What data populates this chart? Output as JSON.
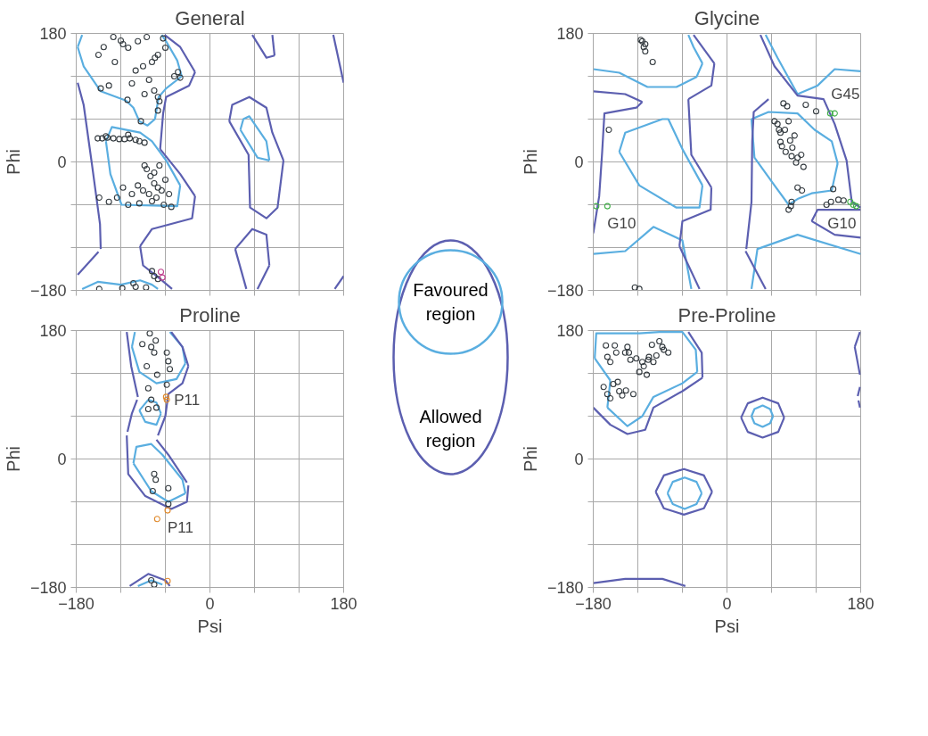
{
  "chart_data": [
    {
      "type": "scatter",
      "title": "General",
      "ylabel": "Phi",
      "xlim": [
        -180,
        180
      ],
      "ylim": [
        -180,
        180
      ],
      "xticks": [
        -180,
        {
          "value": -120,
          "label": null
        },
        {
          "value": -60,
          "label": null
        },
        0,
        {
          "value": 60,
          "label": null
        },
        {
          "value": 120,
          "label": null
        },
        180
      ],
      "yticks": [
        -180,
        {
          "value": -120,
          "label": null
        },
        {
          "value": -60,
          "label": null
        },
        0,
        {
          "value": 60,
          "label": null
        },
        {
          "value": 120,
          "label": null
        },
        180
      ],
      "grid": true,
      "tick_labels": "y",
      "legend": "right",
      "series": [
        {
          "type": "line",
          "name": "Favoured region",
          "color": "#5aaee0",
          "x": [
            -178,
            -170,
            -147,
            -113,
            -103,
            -95,
            -84,
            -74,
            -69,
            -59,
            -38
          ],
          "values": [
            161,
            134,
            99,
            86,
            76,
            57,
            51,
            60,
            91,
            103,
            120
          ]
        },
        {
          "type": "line",
          "color": "#5aaee0",
          "x": [
            -178,
            -172
          ],
          "values": [
            161,
            178
          ]
        },
        {
          "type": "line",
          "color": "#5aaee0",
          "x": [
            -65,
            -59,
            -44,
            -38
          ],
          "values": [
            178,
            169,
            142,
            120
          ]
        },
        {
          "type": "line",
          "color": "#5aaee0",
          "x": [
            -140,
            -132,
            -94,
            -78,
            -59,
            -40
          ],
          "values": [
            29,
            49,
            41,
            29,
            2,
            -33
          ]
        },
        {
          "type": "line",
          "color": "#5aaee0",
          "x": [
            -140,
            -134,
            -119,
            -44,
            -40
          ],
          "values": [
            29,
            -17,
            -60,
            -62,
            -33
          ]
        },
        {
          "type": "line",
          "color": "#5aaee0",
          "x": [
            -172,
            -151,
            -120,
            -94,
            -78,
            -70
          ],
          "values": [
            -178,
            -168,
            -172,
            -166,
            -172,
            -178
          ]
        },
        {
          "type": "line",
          "color": "#5aaee0",
          "x": [
            41,
            64,
            80
          ],
          "values": [
            45,
            6,
            2
          ]
        },
        {
          "type": "line",
          "color": "#5aaee0",
          "x": [
            41,
            45,
            53,
            76,
            80
          ],
          "values": [
            45,
            60,
            64,
            29,
            2
          ]
        },
        {
          "type": "line",
          "name": "Allowed region",
          "color": "#5c5fb0",
          "x": [
            -178,
            -170,
            -159,
            -148,
            -147
          ],
          "values": [
            111,
            80,
            -2,
            -87,
            -122
          ]
        },
        {
          "type": "line",
          "color": "#5c5fb0",
          "x": [
            -178,
            -150
          ],
          "values": [
            -158,
            -126
          ]
        },
        {
          "type": "line",
          "color": "#5c5fb0",
          "x": [
            -61,
            -40,
            -20
          ],
          "values": [
            178,
            161,
            126
          ]
        },
        {
          "type": "line",
          "color": "#5c5fb0",
          "x": [
            -67,
            -63,
            -59,
            -28,
            -20
          ],
          "values": [
            18,
            68,
            91,
            107,
            126
          ]
        },
        {
          "type": "line",
          "color": "#5c5fb0",
          "x": [
            -67,
            -40,
            -20
          ],
          "values": [
            18,
            -17,
            -48
          ]
        },
        {
          "type": "line",
          "color": "#5c5fb0",
          "x": [
            -94,
            -78,
            -24,
            -20
          ],
          "values": [
            -118,
            -94,
            -79,
            -48
          ]
        },
        {
          "type": "line",
          "color": "#5c5fb0",
          "x": [
            -94,
            -90,
            -67,
            -51
          ],
          "values": [
            -118,
            -145,
            -164,
            -178
          ]
        },
        {
          "type": "line",
          "color": "#5c5fb0",
          "x": [
            26,
            30,
            53,
            76,
            84,
            99
          ],
          "values": [
            57,
            80,
            91,
            76,
            41,
            2
          ]
        },
        {
          "type": "line",
          "color": "#5c5fb0",
          "x": [
            26,
            52,
            54,
            76,
            91,
            99
          ],
          "values": [
            57,
            10,
            -64,
            -79,
            -64,
            2
          ]
        },
        {
          "type": "line",
          "color": "#5c5fb0",
          "x": [
            34,
            49
          ],
          "values": [
            -122,
            -178
          ]
        },
        {
          "type": "line",
          "color": "#5c5fb0",
          "x": [
            34,
            57,
            76,
            80
          ],
          "values": [
            -122,
            -94,
            -102,
            -145
          ]
        },
        {
          "type": "line",
          "color": "#5c5fb0",
          "x": [
            64,
            80
          ],
          "values": [
            -178,
            -145
          ]
        },
        {
          "type": "line",
          "color": "#5c5fb0",
          "x": [
            57,
            76,
            87
          ],
          "values": [
            178,
            146,
            149
          ]
        },
        {
          "type": "line",
          "color": "#5c5fb0",
          "x": [
            84,
            87
          ],
          "values": [
            178,
            149
          ]
        },
        {
          "type": "line",
          "color": "#5c5fb0",
          "x": [
            166,
            180
          ],
          "values": [
            178,
            111
          ]
        },
        {
          "type": "line",
          "color": "#5c5fb0",
          "x": [
            168,
            180
          ],
          "values": [
            -178,
            -160
          ]
        },
        {
          "marker": "circle",
          "color": "#333a3f",
          "x": [
            -143,
            -117,
            -120,
            -110,
            -97,
            -63,
            -74,
            -70,
            -78,
            -90,
            -100,
            -82,
            -70,
            -75,
            -43,
            -48,
            -40,
            -136,
            -147,
            -111,
            -93,
            -70,
            -68,
            -128,
            -150,
            -105,
            -88,
            -60,
            -85,
            -130,
            -151,
            -145,
            -138,
            -130,
            -122,
            -115,
            -108,
            -100,
            -95,
            -88,
            -110,
            -140,
            -70,
            -75,
            -65,
            -80,
            -60,
            -72,
            -85,
            -68,
            -55,
            -78,
            -62,
            -90,
            -82,
            -117,
            -136,
            -149,
            -97,
            -105,
            -125,
            -110,
            -95,
            -52,
            -88,
            -75,
            -78,
            -70,
            -103,
            -149,
            -86,
            -75,
            -100,
            -118
          ],
          "values": [
            161,
            165,
            170,
            160,
            169,
            173,
            146,
            150,
            140,
            134,
            128,
            115,
            91,
            100,
            126,
            120,
            118,
            107,
            103,
            87,
            57,
            72,
            85,
            140,
            150,
            110,
            95,
            160,
            175,
            175,
            33,
            33,
            34,
            33,
            32,
            32,
            33,
            31,
            29,
            27,
            38,
            36,
            -36,
            -30,
            -40,
            -20,
            -25,
            -50,
            -10,
            -5,
            -45,
            -55,
            -60,
            -40,
            -45,
            -36,
            -56,
            -50,
            -33,
            -45,
            -50,
            -60,
            -58,
            -63,
            -5,
            -15,
            -153,
            -164,
            -170,
            -178,
            -176,
            -160,
            -175,
            -177
          ]
        },
        {
          "marker": "circle",
          "x": [
            -66,
            -64
          ],
          "values": [
            -154,
            -162
          ],
          "colors": [
            "#c0408f",
            "#c0408f"
          ]
        }
      ]
    },
    {
      "type": "scatter",
      "title": "Glycine",
      "ylabel": "Phi",
      "xlim": [
        -180,
        180
      ],
      "ylim": [
        -180,
        180
      ],
      "xticks": [
        -180,
        {
          "value": -120,
          "label": null
        },
        {
          "value": -60,
          "label": null
        },
        0,
        {
          "value": 60,
          "label": null
        },
        {
          "value": 120,
          "label": null
        },
        180
      ],
      "yticks": [
        -180,
        {
          "value": -120,
          "label": null
        },
        {
          "value": -60,
          "label": null
        },
        0,
        {
          "value": 60,
          "label": null
        },
        {
          "value": 120,
          "label": null
        },
        180
      ],
      "grid": true,
      "tick_labels": "y",
      "annotations": [
        {
          "text": "G45",
          "x": 145,
          "y": 68
        },
        {
          "text": "G10",
          "x": -161,
          "y": -62
        },
        {
          "text": "G10",
          "x": 174,
          "y": -62
        }
      ],
      "series": [
        {
          "type": "line",
          "color": "#5aaee0",
          "x": [
            -180,
            -145,
            -107,
            -68,
            -41,
            -33
          ],
          "values": [
            130,
            125,
            105,
            105,
            119,
            138
          ]
        },
        {
          "type": "line",
          "color": "#5aaee0",
          "x": [
            -52,
            -45,
            -33
          ],
          "values": [
            178,
            161,
            138
          ]
        },
        {
          "type": "line",
          "color": "#5aaee0",
          "x": [
            -145,
            -137,
            -87,
            -79,
            -60,
            -33
          ],
          "values": [
            14,
            41,
            60,
            60,
            18,
            -33
          ]
        },
        {
          "type": "line",
          "color": "#5aaee0",
          "x": [
            -145,
            -118,
            -68,
            -37,
            -33
          ],
          "values": [
            14,
            -33,
            -64,
            -64,
            -33
          ]
        },
        {
          "type": "line",
          "color": "#5aaee0",
          "x": [
            -180,
            -137,
            -99,
            -60,
            -48
          ],
          "values": [
            -129,
            -125,
            -91,
            -110,
            -178
          ]
        },
        {
          "type": "line",
          "color": "#5aaee0",
          "x": [
            52,
            68,
            95,
            122,
            145,
            180
          ],
          "values": [
            178,
            146,
            95,
            107,
            130,
            127
          ]
        },
        {
          "type": "line",
          "color": "#5aaee0",
          "x": [
            33,
            56,
            95,
            118,
            141,
            149
          ],
          "values": [
            60,
            70,
            68,
            45,
            29,
            -2
          ]
        },
        {
          "type": "line",
          "color": "#5aaee0",
          "x": [
            33,
            37,
            64,
            83,
            95,
            114,
            141,
            149
          ],
          "values": [
            60,
            6,
            -33,
            -60,
            -52,
            -44,
            -40,
            -2
          ]
        },
        {
          "type": "line",
          "color": "#5aaee0",
          "x": [
            33,
            41,
            95,
            180
          ],
          "values": [
            -178,
            -122,
            -102,
            -129
          ]
        },
        {
          "type": "line",
          "color": "#5c5fb0",
          "x": [
            -180,
            -137,
            -114
          ],
          "values": [
            99,
            95,
            84
          ]
        },
        {
          "type": "line",
          "color": "#5c5fb0",
          "x": [
            -180,
            -172,
            -168,
            -165,
            -122,
            -114
          ],
          "values": [
            -100,
            -48,
            14,
            68,
            76,
            84
          ]
        },
        {
          "type": "line",
          "color": "#5c5fb0",
          "x": [
            -45,
            -17
          ],
          "values": [
            178,
            138
          ]
        },
        {
          "type": "line",
          "color": "#5c5fb0",
          "x": [
            -52,
            -21,
            -17
          ],
          "values": [
            88,
            107,
            138
          ]
        },
        {
          "type": "line",
          "color": "#5c5fb0",
          "x": [
            -52,
            -48,
            -21
          ],
          "values": [
            88,
            10,
            -36
          ]
        },
        {
          "type": "line",
          "color": "#5c5fb0",
          "x": [
            -64,
            -60,
            -22,
            -21
          ],
          "values": [
            -118,
            -83,
            -67,
            -36
          ]
        },
        {
          "type": "line",
          "color": "#5c5fb0",
          "x": [
            -64,
            -37
          ],
          "values": [
            -118,
            -178
          ]
        },
        {
          "type": "line",
          "color": "#5c5fb0",
          "x": [
            45,
            64,
            95,
            130,
            145,
            161,
            168,
            180
          ],
          "values": [
            178,
            134,
            93,
            88,
            53,
            2,
            -56,
            -64
          ]
        },
        {
          "type": "line",
          "color": "#5c5fb0",
          "x": [
            25,
            52
          ],
          "values": [
            -125,
            -178
          ]
        },
        {
          "type": "line",
          "color": "#5c5fb0",
          "x": [
            26,
            33,
            34,
            36,
            56
          ],
          "values": [
            -122,
            -56,
            29,
            70,
            88
          ]
        },
        {
          "type": "line",
          "color": "#5c5fb0",
          "x": [
            114,
            122,
            180
          ],
          "values": [
            -83,
            -67,
            -67
          ]
        },
        {
          "type": "line",
          "color": "#5c5fb0",
          "x": [
            114,
            145,
            180
          ],
          "values": [
            -83,
            -102,
            -106
          ]
        },
        {
          "marker": "circle",
          "color": "#333a3f",
          "x": [
            64,
            68,
            72,
            74,
            79,
            87,
            95,
            91,
            83,
            81,
            106,
            120,
            103,
            87,
            101,
            83,
            134,
            143,
            157,
            70,
            78,
            85,
            72,
            88,
            100,
            93,
            76,
            86,
            95,
            140,
            150,
            -114,
            -112,
            -110,
            -116,
            -110,
            -100,
            -159,
            -124,
            -118
          ],
          "values": [
            57,
            53,
            41,
            22,
            14,
            8,
            6,
            37,
            57,
            78,
            80,
            71,
            -7,
            -56,
            -40,
            -67,
            -60,
            -38,
            -54,
            45,
            45,
            30,
            28,
            20,
            10,
            -1,
            82,
            -62,
            -36,
            -56,
            -53,
            169,
            161,
            165,
            171,
            155,
            140,
            45,
            -176,
            -178
          ]
        },
        {
          "marker": "circle",
          "x": [
            139,
            145,
            166,
            170,
            174,
            -176,
            -161
          ],
          "values": [
            68,
            68,
            -56,
            -60,
            -62,
            -62,
            -62
          ],
          "colors": [
            "#43b04a",
            "#43b04a",
            "#43b04a",
            "#43b04a",
            "#43b04a",
            "#43b04a",
            "#43b04a"
          ]
        }
      ]
    },
    {
      "type": "scatter",
      "title": "Proline",
      "xlabel": "Psi",
      "ylabel": "Phi",
      "xlim": [
        -180,
        180
      ],
      "ylim": [
        -180,
        180
      ],
      "xticks": [
        -180,
        {
          "value": -120,
          "label": null
        },
        {
          "value": -60,
          "label": null
        },
        0,
        {
          "value": 60,
          "label": null
        },
        {
          "value": 120,
          "label": null
        },
        180
      ],
      "yticks": [
        -180,
        {
          "value": -120,
          "label": null
        },
        {
          "value": -60,
          "label": null
        },
        0,
        {
          "value": 60,
          "label": null
        },
        {
          "value": 120,
          "label": null
        },
        180
      ],
      "grid": true,
      "annotations": [
        {
          "text": "P11",
          "x": -58,
          "y": 83
        },
        {
          "text": "P11",
          "x": -57,
          "y": -72
        }
      ],
      "series": [
        {
          "type": "line",
          "color": "#5aaee0",
          "x": [
            -105,
            -101
          ],
          "values": [
            157,
            178
          ]
        },
        {
          "type": "line",
          "color": "#5aaee0",
          "x": [
            -105,
            -95,
            -72,
            -45,
            -33
          ],
          "values": [
            157,
            122,
            106,
            112,
            134
          ]
        },
        {
          "type": "line",
          "color": "#5aaee0",
          "x": [
            -54,
            -37,
            -33
          ],
          "values": [
            178,
            157,
            134
          ]
        },
        {
          "type": "line",
          "color": "#5aaee0",
          "x": [
            -95,
            -83,
            -72,
            -66
          ],
          "values": [
            68,
            83,
            79,
            64
          ]
        },
        {
          "type": "line",
          "color": "#5aaee0",
          "x": [
            -95,
            -87,
            -72,
            -66
          ],
          "values": [
            68,
            52,
            48,
            64
          ]
        },
        {
          "type": "line",
          "color": "#5aaee0",
          "x": [
            -103,
            -99,
            -79,
            -64,
            -37,
            -33
          ],
          "values": [
            -6,
            17,
            21,
            6,
            -29,
            -48
          ]
        },
        {
          "type": "line",
          "color": "#5aaee0",
          "x": [
            -103,
            -79,
            -56,
            -33
          ],
          "values": [
            -6,
            -45,
            -60,
            -48
          ]
        },
        {
          "type": "line",
          "color": "#5aaee0",
          "x": [
            -97,
            -79,
            -64
          ],
          "values": [
            -178,
            -170,
            -176
          ]
        },
        {
          "type": "line",
          "color": "#5c5fb0",
          "x": [
            -112,
            -106,
            -97
          ],
          "values": [
            178,
            130,
            87
          ]
        },
        {
          "type": "line",
          "color": "#5c5fb0",
          "x": [
            -111,
            -105,
            -98
          ],
          "values": [
            38,
            64,
            83
          ]
        },
        {
          "type": "line",
          "color": "#5c5fb0",
          "x": [
            -112,
            -110,
            -87,
            -52,
            -31,
            -29
          ],
          "values": [
            33,
            -21,
            -52,
            -70,
            -60,
            -37
          ]
        },
        {
          "type": "line",
          "color": "#5c5fb0",
          "x": [
            -72,
            -56,
            -31
          ],
          "values": [
            27,
            6,
            -33
          ]
        },
        {
          "type": "line",
          "color": "#5c5fb0",
          "x": [
            -70,
            -60,
            -56,
            -37,
            -29
          ],
          "values": [
            33,
            60,
            91,
            106,
            130
          ]
        },
        {
          "type": "line",
          "color": "#5c5fb0",
          "x": [
            -52,
            -37,
            -29
          ],
          "values": [
            178,
            157,
            130
          ]
        },
        {
          "type": "line",
          "color": "#5c5fb0",
          "x": [
            -108,
            -83,
            -60,
            -54
          ],
          "values": [
            -178,
            -161,
            -170,
            -178
          ]
        },
        {
          "marker": "circle",
          "color": "#333a3f",
          "x": [
            -81,
            -73,
            -79,
            -75,
            -58,
            -56,
            -85,
            -71,
            -54,
            -83,
            -58,
            -79,
            -72,
            -83,
            -91,
            -75,
            -73,
            -77,
            -56,
            -56,
            -79,
            -75
          ],
          "values": [
            176,
            166,
            157,
            149,
            149,
            137,
            130,
            118,
            126,
            99,
            104,
            83,
            72,
            70,
            161,
            -21,
            -29,
            -45,
            -41,
            -63,
            -170,
            -176
          ]
        },
        {
          "marker": "circle",
          "x": [
            -59,
            -58,
            -57,
            -71,
            -57
          ],
          "values": [
            87,
            83,
            -72,
            -84,
            -171
          ],
          "colors": [
            "#e08a2c",
            "#e08a2c",
            "#e08a2c",
            "#e08a2c",
            "#e08a2c"
          ]
        }
      ]
    },
    {
      "type": "scatter",
      "title": "Pre-Proline",
      "xlabel": "Psi",
      "ylabel": "Phi",
      "xlim": [
        -180,
        180
      ],
      "ylim": [
        -180,
        180
      ],
      "xticks": [
        -180,
        {
          "value": -120,
          "label": null
        },
        {
          "value": -60,
          "label": null
        },
        0,
        {
          "value": 60,
          "label": null
        },
        {
          "value": 120,
          "label": null
        },
        180
      ],
      "yticks": [
        -180,
        {
          "value": -120,
          "label": null
        },
        {
          "value": -60,
          "label": null
        },
        0,
        {
          "value": 60,
          "label": null
        },
        {
          "value": 120,
          "label": null
        },
        180
      ],
      "grid": true,
      "series": [
        {
          "type": "line",
          "color": "#5aaee0",
          "x": [
            -178,
            -176,
            -118,
            -91,
            -60,
            -42,
            -40
          ],
          "values": [
            141,
            176,
            176,
            178,
            178,
            153,
            122
          ]
        },
        {
          "type": "line",
          "color": "#5aaee0",
          "x": [
            -178,
            -157
          ],
          "values": [
            141,
            110
          ]
        },
        {
          "type": "line",
          "color": "#5aaee0",
          "x": [
            -161,
            -157
          ],
          "values": [
            72,
            110
          ]
        },
        {
          "type": "line",
          "color": "#5aaee0",
          "x": [
            -161,
            -134,
            -114,
            -99,
            -60,
            -40
          ],
          "values": [
            72,
            46,
            60,
            87,
            106,
            122
          ]
        },
        {
          "type": "line",
          "color": "#5aaee0",
          "x": [
            33,
            37,
            48,
            58,
            62
          ],
          "values": [
            60,
            70,
            75,
            70,
            60
          ]
        },
        {
          "type": "line",
          "color": "#5aaee0",
          "x": [
            33,
            37,
            48,
            58,
            62
          ],
          "values": [
            60,
            50,
            45,
            50,
            60
          ]
        },
        {
          "type": "line",
          "color": "#5aaee0",
          "x": [
            -80,
            -73,
            -57,
            -41,
            -34
          ],
          "values": [
            -48,
            -32,
            -26,
            -32,
            -48
          ]
        },
        {
          "type": "line",
          "color": "#5aaee0",
          "x": [
            -80,
            -73,
            -57,
            -41,
            -34
          ],
          "values": [
            -48,
            -63,
            -70,
            -63,
            -48
          ]
        },
        {
          "type": "line",
          "color": "#5c5fb0",
          "x": [
            -180,
            -157,
            -134,
            -110,
            -99,
            -60,
            -33
          ],
          "values": [
            72,
            48,
            35,
            41,
            72,
            95,
            114
          ]
        },
        {
          "type": "line",
          "color": "#5c5fb0",
          "x": [
            -52,
            -34,
            -33
          ],
          "values": [
            178,
            149,
            114
          ]
        },
        {
          "type": "line",
          "color": "#5c5fb0",
          "x": [
            19,
            28,
            48,
            69,
            77
          ],
          "values": [
            58,
            78,
            86,
            78,
            58
          ]
        },
        {
          "type": "line",
          "color": "#5c5fb0",
          "x": [
            19,
            28,
            48,
            69,
            77
          ],
          "values": [
            58,
            38,
            30,
            38,
            58
          ]
        },
        {
          "type": "line",
          "color": "#5c5fb0",
          "x": [
            -96,
            -85,
            -58,
            -31,
            -20
          ],
          "values": [
            -46,
            -23,
            -14,
            -23,
            -46
          ]
        },
        {
          "type": "line",
          "color": "#5c5fb0",
          "x": [
            -96,
            -85,
            -58,
            -31,
            -20
          ],
          "values": [
            -46,
            -69,
            -78,
            -69,
            -46
          ]
        },
        {
          "type": "line",
          "color": "#5c5fb0",
          "x": [
            -180,
            -137,
            -87,
            -56
          ],
          "values": [
            -174,
            -168,
            -168,
            -178
          ]
        },
        {
          "type": "line",
          "color": "#5c5fb0",
          "x": [
            172,
            179
          ],
          "values": [
            157,
            178
          ]
        },
        {
          "type": "line",
          "color": "#5c5fb0",
          "x": [
            172,
            179
          ],
          "values": [
            157,
            118
          ]
        },
        {
          "type": "line",
          "color": "#5c5fb0",
          "x": [
            176,
            179
          ],
          "values": [
            88,
            101
          ]
        },
        {
          "type": "line",
          "color": "#5c5fb0",
          "x": [
            177,
            179
          ],
          "values": [
            82,
            72
          ]
        },
        {
          "marker": "circle",
          "color": "#333a3f",
          "x": [
            -163,
            -151,
            -161,
            -149,
            -157,
            -134,
            -132,
            -137,
            -130,
            -122,
            -114,
            -106,
            -99,
            -118,
            -108,
            -105,
            -112,
            -101,
            -91,
            -87,
            -79,
            -95,
            -85,
            -166,
            -153,
            -147,
            -161,
            -145,
            -157,
            -136,
            -126,
            -141
          ],
          "values": [
            159,
            159,
            143,
            149,
            136,
            157,
            149,
            149,
            139,
            141,
            136,
            139,
            136,
            122,
            118,
            143,
            130,
            160,
            165,
            157,
            149,
            145,
            153,
            101,
            105,
            108,
            91,
            95,
            85,
            96,
            91,
            89
          ]
        }
      ]
    }
  ]
}
